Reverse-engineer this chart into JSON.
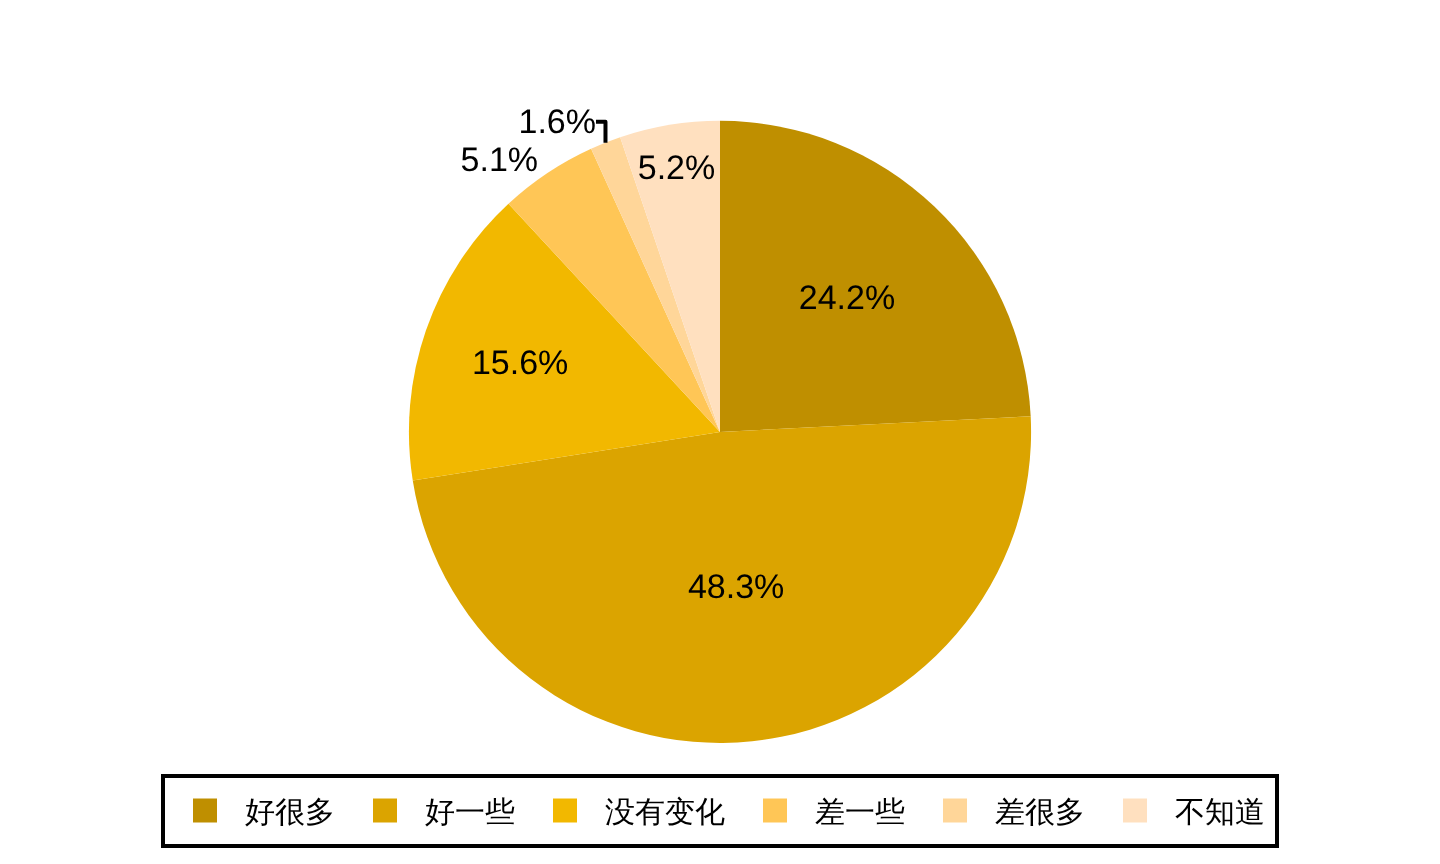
{
  "chart_data": {
    "type": "pie",
    "categories": [
      "好很多",
      "好一些",
      "没有变化",
      "差一些",
      "差很多",
      "不知道"
    ],
    "values": [
      24.2,
      48.3,
      15.6,
      5.1,
      1.6,
      5.2
    ],
    "colors": [
      "#bf8f00",
      "#dba400",
      "#f2b800",
      "#ffc656",
      "#ffd699",
      "#ffe0bf"
    ],
    "value_labels": [
      "24.2%",
      "48.3%",
      "15.6%",
      "5.1%",
      "1.6%",
      "5.2%"
    ],
    "legend": "bottom"
  }
}
